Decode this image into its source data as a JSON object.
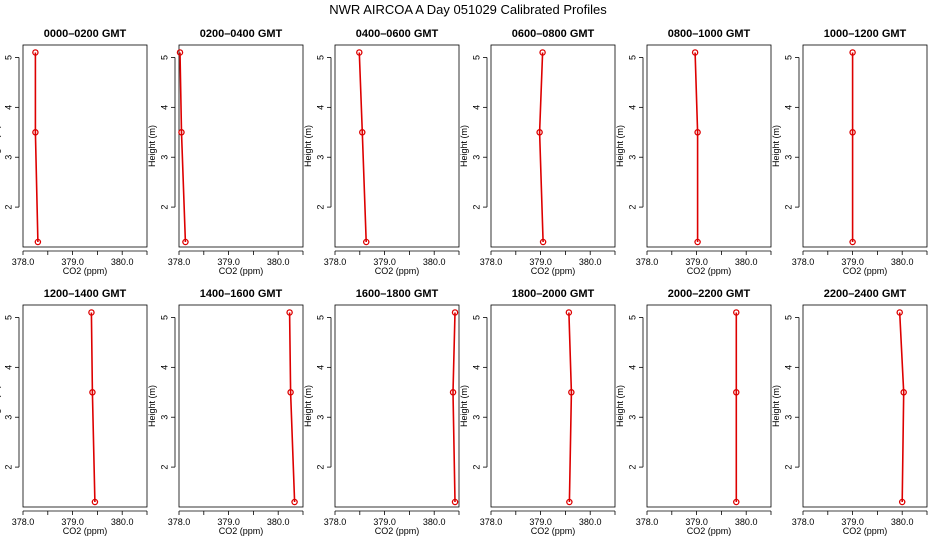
{
  "title": "NWR AIRCOA A  Day 051029  Calibrated Profiles",
  "colors": {
    "series": "#dd0000",
    "axis": "#000000",
    "background": "#ffffff"
  },
  "chart_data": {
    "type": "line",
    "layout": "2x6 small multiples",
    "xlabel": "CO2 (ppm)",
    "ylabel": "Height (m)",
    "xlim": [
      378.0,
      380.5
    ],
    "ylim": [
      1.2,
      5.25
    ],
    "xticks": [
      378.0,
      378.5,
      379.0,
      379.5,
      380.0,
      380.5
    ],
    "xtick_labels": [
      "378.0",
      "",
      "379.0",
      "",
      "380.0",
      ""
    ],
    "yticks": [
      2,
      3,
      4,
      5
    ],
    "ytick_labels": [
      "2",
      "3",
      "4",
      "5"
    ],
    "heights": [
      5.1,
      3.5,
      1.3
    ],
    "grid": false,
    "panels": [
      {
        "title": "0000–0200 GMT",
        "co2": [
          378.25,
          378.25,
          378.3
        ]
      },
      {
        "title": "0200–0400 GMT",
        "co2": [
          378.02,
          378.05,
          378.13
        ]
      },
      {
        "title": "0400–0600 GMT",
        "co2": [
          378.49,
          378.55,
          378.63
        ]
      },
      {
        "title": "0600–0800 GMT",
        "co2": [
          379.04,
          378.98,
          379.05
        ]
      },
      {
        "title": "0800–1000 GMT",
        "co2": [
          378.97,
          379.02,
          379.02
        ]
      },
      {
        "title": "1000–1200 GMT",
        "co2": [
          379.0,
          379.0,
          379.0
        ]
      },
      {
        "title": "1200–1400 GMT",
        "co2": [
          379.38,
          379.4,
          379.45
        ]
      },
      {
        "title": "1400–1600 GMT",
        "co2": [
          380.23,
          380.25,
          380.33
        ]
      },
      {
        "title": "1600–1800 GMT",
        "co2": [
          380.42,
          380.38,
          380.42
        ]
      },
      {
        "title": "1800–2000 GMT",
        "co2": [
          379.57,
          379.62,
          379.58
        ]
      },
      {
        "title": "2000–2200 GMT",
        "co2": [
          379.8,
          379.8,
          379.8
        ]
      },
      {
        "title": "2200–2400 GMT",
        "co2": [
          379.95,
          380.03,
          380.0
        ]
      }
    ]
  }
}
